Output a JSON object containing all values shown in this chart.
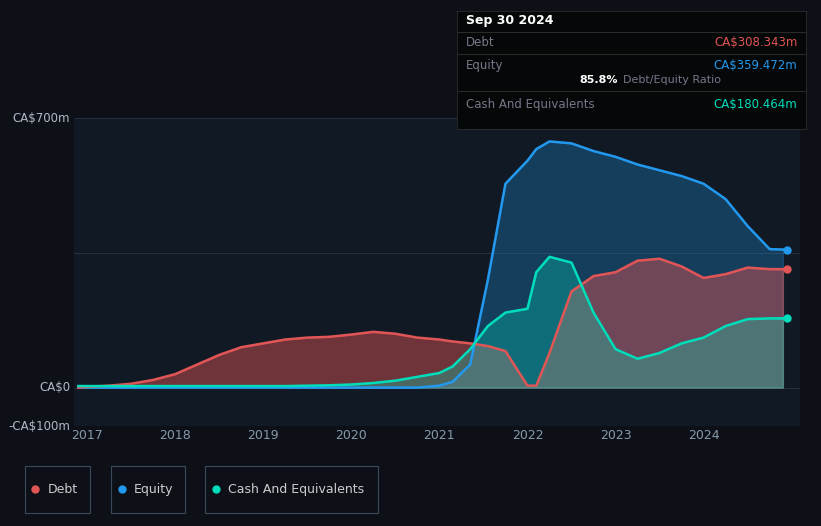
{
  "bg_color": "#0d1117",
  "plot_bg_color": "#111a24",
  "grid_color": "#253040",
  "ylabel_top": "CA$700m",
  "ylabel_zero": "CA$0",
  "ylabel_neg": "-CA$100m",
  "x_ticks": [
    2017,
    2018,
    2019,
    2020,
    2021,
    2022,
    2023,
    2024
  ],
  "ylim": [
    -100,
    700
  ],
  "xlim_start": 2016.85,
  "xlim_end": 2025.1,
  "debt_color": "#e05555",
  "equity_color": "#2299ee",
  "cash_color": "#00ddbb",
  "title_box": {
    "date": "Sep 30 2024",
    "debt_label": "Debt",
    "debt_value": "CA$308.343m",
    "debt_color": "#e05555",
    "equity_label": "Equity",
    "equity_value": "CA$359.472m",
    "equity_color": "#2299ee",
    "ratio_bold": "85.8%",
    "ratio_text": " Debt/Equity Ratio",
    "cash_label": "Cash And Equivalents",
    "cash_value": "CA$180.464m",
    "cash_color": "#00ddbb"
  },
  "years": [
    2016.9,
    2017.0,
    2017.25,
    2017.5,
    2017.75,
    2018.0,
    2018.25,
    2018.5,
    2018.75,
    2019.0,
    2019.25,
    2019.5,
    2019.75,
    2020.0,
    2020.25,
    2020.5,
    2020.75,
    2021.0,
    2021.15,
    2021.35,
    2021.55,
    2021.75,
    2022.0,
    2022.1,
    2022.25,
    2022.5,
    2022.75,
    2023.0,
    2023.25,
    2023.5,
    2023.75,
    2024.0,
    2024.25,
    2024.5,
    2024.75,
    2024.9
  ],
  "debt": [
    0,
    2,
    5,
    10,
    20,
    35,
    60,
    85,
    105,
    115,
    125,
    130,
    132,
    138,
    145,
    140,
    130,
    125,
    120,
    115,
    108,
    95,
    5,
    5,
    90,
    250,
    290,
    300,
    330,
    335,
    315,
    285,
    295,
    312,
    308,
    308
  ],
  "equity": [
    0,
    0,
    0,
    0,
    0,
    0,
    0,
    0,
    0,
    0,
    0,
    0,
    0,
    0,
    0,
    0,
    0,
    5,
    15,
    60,
    280,
    530,
    590,
    620,
    640,
    635,
    615,
    600,
    580,
    565,
    550,
    530,
    490,
    420,
    360,
    359
  ],
  "cash": [
    4,
    4,
    4,
    4,
    4,
    4,
    4,
    4,
    4,
    4,
    4,
    5,
    6,
    8,
    12,
    18,
    28,
    38,
    55,
    100,
    160,
    195,
    205,
    300,
    340,
    325,
    195,
    100,
    75,
    90,
    115,
    130,
    160,
    178,
    180,
    180
  ],
  "legend_items": [
    "Debt",
    "Equity",
    "Cash And Equivalents"
  ],
  "legend_colors": [
    "#e05555",
    "#2299ee",
    "#00ddbb"
  ],
  "dot_values": [
    308,
    359,
    180
  ]
}
